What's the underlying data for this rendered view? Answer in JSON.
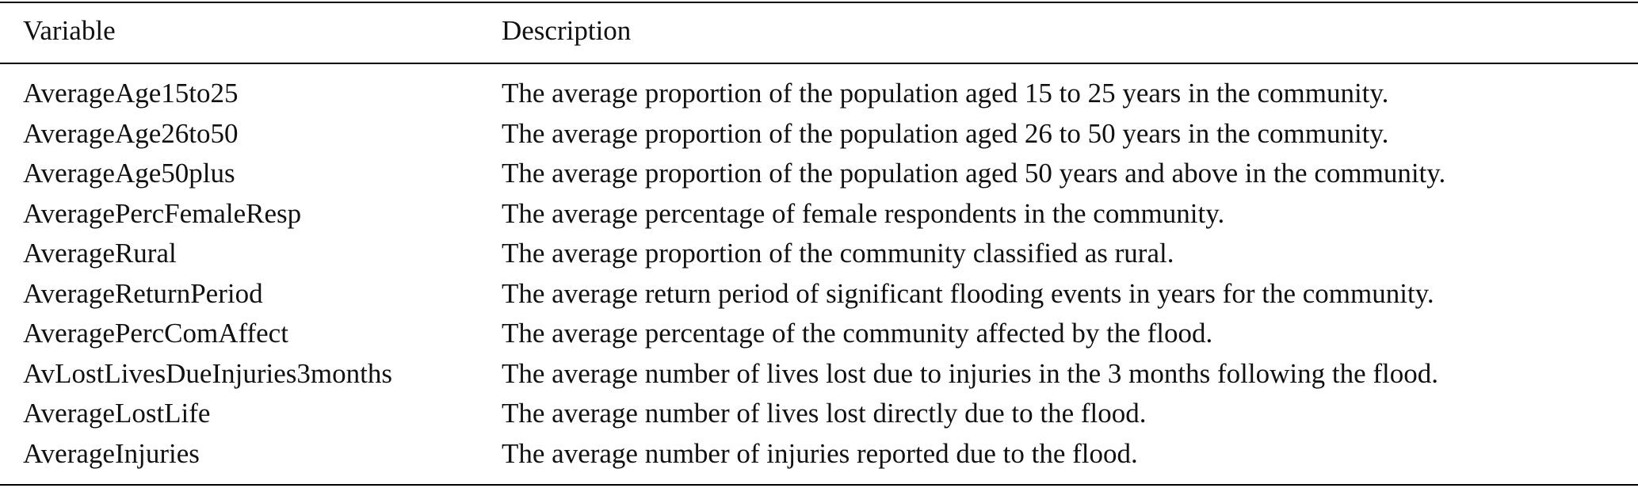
{
  "table": {
    "header": [
      "Variable",
      "Description"
    ],
    "rows": [
      [
        "AverageAge15to25",
        "The average proportion of the population aged 15 to 25 years in the community."
      ],
      [
        "AverageAge26to50",
        "The average proportion of the population aged 26 to 50 years in the community."
      ],
      [
        "AverageAge50plus",
        "The average proportion of the population aged 50 years and above in the community."
      ],
      [
        "AveragePercFemaleResp",
        "The average percentage of female respondents in the community."
      ],
      [
        "AverageRural",
        "The average proportion of the community classified as rural."
      ],
      [
        "AverageReturnPeriod",
        "The average return period of significant flooding events in years for the community."
      ],
      [
        "AveragePercComAffect",
        "The average percentage of the community affected by the flood."
      ],
      [
        "AvLostLivesDueInjuries3months",
        "The average number of lives lost due to injuries in the 3 months following the flood."
      ],
      [
        "AverageLostLife",
        "The average number of lives lost directly due to the flood."
      ],
      [
        "AverageInjuries",
        "The average number of injuries reported due to the flood."
      ]
    ]
  }
}
